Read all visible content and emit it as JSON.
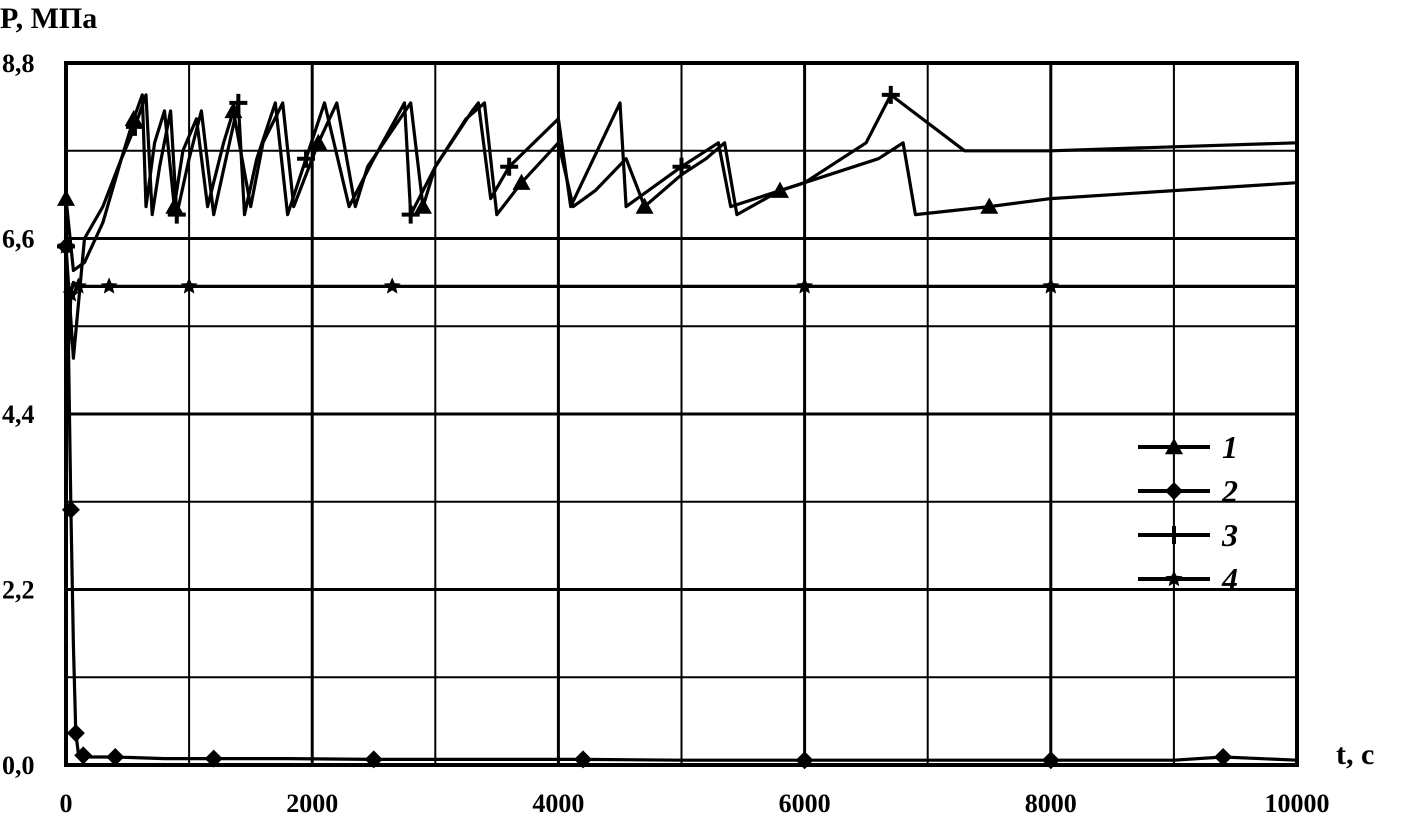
{
  "chart_data": {
    "type": "line",
    "ylabel": "P, МПа",
    "xlabel": "t, c",
    "xlim": [
      0,
      10000
    ],
    "ylim": [
      0,
      8.8
    ],
    "x_ticks": [
      "0",
      "2000",
      "4000",
      "6000",
      "8000",
      "10000"
    ],
    "y_ticks": [
      "0,0",
      "2,2",
      "4,4",
      "6,6",
      "8,8"
    ],
    "grid": true,
    "legend_position": "right-middle",
    "series": [
      {
        "name": "1",
        "marker": "triangle",
        "x": [
          0,
          60,
          150,
          300,
          450,
          550,
          620,
          650,
          720,
          800,
          880,
          950,
          1060,
          1150,
          1280,
          1360,
          1500,
          1600,
          1760,
          1850,
          2050,
          2200,
          2350,
          2450,
          2800,
          2900,
          3000,
          3250,
          3400,
          3500,
          3700,
          4000,
          4120,
          4300,
          4550,
          4700,
          5000,
          5200,
          5350,
          5450,
          5800,
          6200,
          6600,
          6800,
          6900,
          7500,
          8000,
          9000,
          10000
        ],
        "y": [
          7.1,
          6.2,
          6.3,
          6.8,
          7.6,
          8.1,
          8.4,
          7.0,
          7.8,
          8.2,
          7.0,
          7.7,
          8.1,
          7.0,
          7.8,
          8.2,
          7.0,
          7.8,
          8.3,
          7.0,
          7.8,
          8.3,
          7.0,
          7.5,
          8.3,
          7.0,
          7.5,
          8.1,
          8.3,
          6.9,
          7.3,
          7.8,
          7.0,
          7.2,
          7.6,
          7.0,
          7.4,
          7.6,
          7.8,
          6.9,
          7.2,
          7.4,
          7.6,
          7.8,
          6.9,
          7.0,
          7.1,
          7.2,
          7.3
        ]
      },
      {
        "name": "2",
        "marker": "diamond",
        "x": [
          0,
          20,
          40,
          60,
          80,
          100,
          140,
          200,
          400,
          800,
          1200,
          1800,
          2500,
          3200,
          4200,
          5000,
          6000,
          7000,
          8000,
          9000,
          9400,
          10000
        ],
        "y": [
          6.5,
          5.2,
          3.2,
          1.5,
          0.4,
          0.15,
          0.12,
          0.1,
          0.1,
          0.08,
          0.08,
          0.08,
          0.07,
          0.07,
          0.07,
          0.06,
          0.06,
          0.06,
          0.06,
          0.06,
          0.1,
          0.06
        ]
      },
      {
        "name": "3",
        "marker": "plus",
        "x": [
          0,
          60,
          150,
          300,
          450,
          560,
          650,
          700,
          760,
          850,
          900,
          1000,
          1100,
          1200,
          1300,
          1400,
          1450,
          1550,
          1700,
          1800,
          1950,
          2100,
          2300,
          2500,
          2750,
          2800,
          3000,
          3300,
          3350,
          3450,
          3600,
          4000,
          4100,
          4500,
          4550,
          5000,
          5300,
          5400,
          6000,
          6500,
          6700,
          7300,
          8000,
          9000,
          10000
        ],
        "y": [
          6.5,
          5.1,
          6.6,
          7.0,
          7.6,
          8.0,
          8.4,
          6.9,
          7.5,
          8.2,
          6.9,
          7.6,
          8.2,
          6.9,
          7.6,
          8.3,
          6.9,
          7.6,
          8.3,
          6.9,
          7.6,
          8.3,
          7.0,
          7.6,
          8.3,
          6.9,
          7.5,
          8.2,
          8.3,
          7.1,
          7.5,
          8.1,
          7.0,
          8.3,
          7.0,
          7.5,
          7.8,
          7.0,
          7.3,
          7.8,
          8.4,
          7.7,
          7.7,
          7.75,
          7.8
        ]
      },
      {
        "name": "4",
        "marker": "star",
        "x": [
          0,
          20,
          40,
          60,
          100,
          200,
          350,
          500,
          1000,
          2000,
          2650,
          4000,
          6000,
          7800,
          8000,
          10000
        ],
        "y": [
          6.5,
          5.2,
          5.9,
          6.05,
          6.0,
          6.0,
          6.0,
          6.0,
          6.0,
          6.0,
          6.0,
          6.0,
          6.0,
          6.0,
          6.0,
          6.0
        ]
      }
    ]
  }
}
